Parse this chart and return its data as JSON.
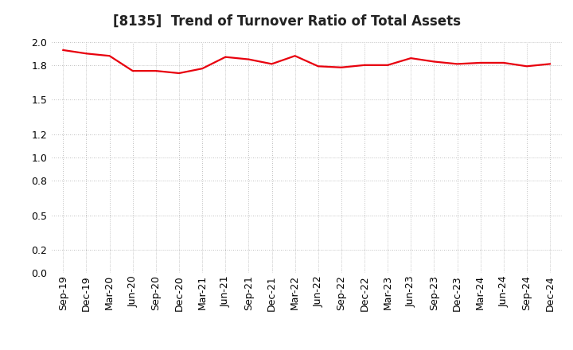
{
  "title": "[8135]  Trend of Turnover Ratio of Total Assets",
  "x_labels": [
    "Sep-19",
    "Dec-19",
    "Mar-20",
    "Jun-20",
    "Sep-20",
    "Dec-20",
    "Mar-21",
    "Jun-21",
    "Sep-21",
    "Dec-21",
    "Mar-22",
    "Jun-22",
    "Sep-22",
    "Dec-22",
    "Mar-23",
    "Jun-23",
    "Sep-23",
    "Dec-23",
    "Mar-24",
    "Jun-24",
    "Sep-24",
    "Dec-24"
  ],
  "y_values": [
    1.93,
    1.9,
    1.88,
    1.75,
    1.75,
    1.73,
    1.77,
    1.87,
    1.85,
    1.81,
    1.88,
    1.79,
    1.78,
    1.8,
    1.8,
    1.86,
    1.83,
    1.81,
    1.82,
    1.82,
    1.79,
    1.81
  ],
  "ylim": [
    0.0,
    2.0
  ],
  "yticks": [
    0.0,
    0.2,
    0.5,
    0.8,
    1.0,
    1.2,
    1.5,
    1.8,
    2.0
  ],
  "line_color": "#e8000d",
  "line_width": 1.6,
  "bg_color": "#ffffff",
  "grid_color": "#aaaaaa",
  "title_fontsize": 12,
  "tick_fontsize": 9
}
